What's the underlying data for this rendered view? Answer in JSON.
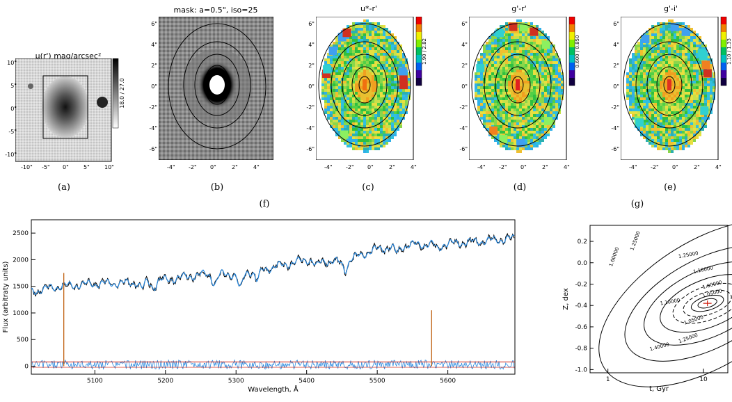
{
  "panels": {
    "a": {
      "title": "μ(r') mag/arcsec²",
      "caption": "(a)",
      "colorbar": "18.0 / 27.0",
      "xticks": [
        "-10\"",
        "-5\"",
        "0\"",
        "5\"",
        "10\""
      ],
      "yticks": [
        "10\"",
        "5\"",
        "0\"",
        "-5\"",
        "-10\""
      ]
    },
    "b": {
      "title": "mask: a=0.5\", iso=25",
      "caption": "(b)",
      "xticks": [
        "-4\"",
        "-2\"",
        "0\"",
        "2\"",
        "4\""
      ],
      "yticks": [
        "6\"",
        "4\"",
        "2\"",
        "0\"",
        "-2\"",
        "-4\"",
        "-6\""
      ]
    },
    "c": {
      "title": "u*-r'",
      "caption": "(c)",
      "colorbar": "1.90 / 2.82",
      "xticks": [
        "-4\"",
        "-2\"",
        "0\"",
        "2\"",
        "4\""
      ],
      "yticks": [
        "6\"",
        "4\"",
        "2\"",
        "0\"",
        "-2\"",
        "-4\"",
        "-6\""
      ]
    },
    "d": {
      "title": "g'-r'",
      "caption": "(d)",
      "colorbar": "0.600 / 0.850",
      "xticks": [
        "-4\"",
        "-2\"",
        "0\"",
        "2\"",
        "4\""
      ],
      "yticks": [
        "6\"",
        "4\"",
        "2\"",
        "0\"",
        "-2\"",
        "-4\"",
        "-6\""
      ]
    },
    "e": {
      "title": "g'-i'",
      "caption": "(e)",
      "colorbar": "1.10 / 1.33",
      "xticks": [
        "-4\"",
        "-2\"",
        "0\"",
        "2\"",
        "4\""
      ],
      "yticks": [
        "6\"",
        "4\"",
        "2\"",
        "0\"",
        "-2\"",
        "-4\"",
        "-6\""
      ]
    }
  },
  "group_captions": {
    "f": "(f)",
    "g": "(g)"
  },
  "spectrum": {
    "xlabel": "Wavelength, Å",
    "ylabel": "Flux (arbitraty units)",
    "xticks": [
      "5100",
      "5200",
      "5300",
      "5400",
      "5500",
      "5600"
    ],
    "yticks": [
      "0",
      "500",
      "1000",
      "1500",
      "2000",
      "2500"
    ]
  },
  "contour": {
    "xlabel": "t, Gyr",
    "ylabel": "Z, dex",
    "xticks": [
      "1",
      "10"
    ],
    "yticks": [
      "0.2",
      "0.0",
      "-0.2",
      "-0.4",
      "-0.6",
      "-0.8",
      "-1.0"
    ],
    "labels": [
      "1.60000",
      "1.25000",
      "1.25000",
      "1.10000",
      "1.05000",
      "1.00000",
      "1.10000",
      "1.05000",
      "1.40000",
      "1.25000"
    ]
  },
  "chart_data": {
    "type": "line",
    "series": [
      {
        "values_summary": "observed spectrum (black)"
      },
      {
        "values_summary": "best-fit model (blue)"
      },
      {
        "values_summary": "residuals (blue)"
      },
      {
        "values_summary": "masked emission lines (red)"
      }
    ],
    "xlim": [
      5010,
      5695
    ],
    "ylim": [
      -150,
      2750
    ],
    "x": [
      5010,
      5050,
      5100,
      5150,
      5200,
      5250,
      5300,
      5350,
      5400,
      5450,
      5500,
      5550,
      5600,
      5650,
      5695
    ],
    "flux": [
      1400,
      1500,
      1550,
      1560,
      1620,
      1720,
      1730,
      1850,
      2000,
      1950,
      2200,
      2280,
      2300,
      2350,
      2400
    ],
    "masked_lines": [
      5056,
      5577
    ],
    "grid": false,
    "legend": "none"
  },
  "colors": {
    "contour": "#000000",
    "obs": "#000000",
    "model": "#2a8ae0",
    "mask": "#d02010",
    "fit": "#d02010"
  }
}
